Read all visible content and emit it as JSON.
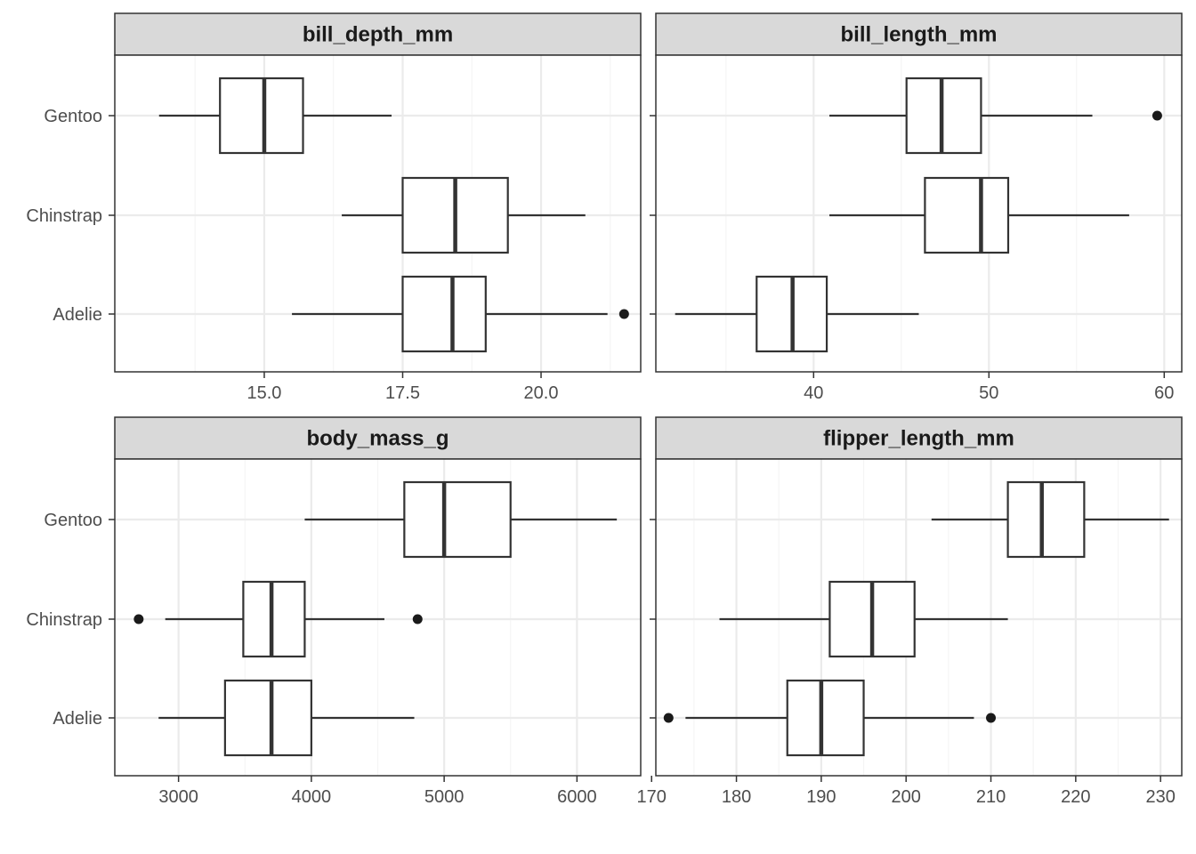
{
  "chart_data": {
    "type": "boxplot",
    "layout": "facet-grid 2x2, free x scales",
    "categories": [
      "Adelie",
      "Chinstrap",
      "Gentoo"
    ],
    "grid": true,
    "panels": [
      {
        "title": "bill_depth_mm",
        "xlim": [
          12.3,
          21.8
        ],
        "x_ticks": [
          15.0,
          17.5,
          20.0
        ],
        "x_tick_labels": [
          "15.0",
          "17.5",
          "20.0"
        ],
        "boxes": [
          {
            "category": "Adelie",
            "whisker_low": 15.5,
            "q1": 17.5,
            "median": 18.4,
            "q3": 19.0,
            "whisker_high": 21.2,
            "outliers": [
              21.5
            ]
          },
          {
            "category": "Chinstrap",
            "whisker_low": 16.4,
            "q1": 17.5,
            "median": 18.45,
            "q3": 19.4,
            "whisker_high": 20.8,
            "outliers": []
          },
          {
            "category": "Gentoo",
            "whisker_low": 13.1,
            "q1": 14.2,
            "median": 15.0,
            "q3": 15.7,
            "whisker_high": 17.3,
            "outliers": []
          }
        ]
      },
      {
        "title": "bill_length_mm",
        "xlim": [
          31.0,
          61.0
        ],
        "x_ticks": [
          40,
          50,
          60
        ],
        "x_tick_labels": [
          "40",
          "50",
          "60"
        ],
        "boxes": [
          {
            "category": "Adelie",
            "whisker_low": 32.1,
            "q1": 36.75,
            "median": 38.8,
            "q3": 40.75,
            "whisker_high": 46.0,
            "outliers": []
          },
          {
            "category": "Chinstrap",
            "whisker_low": 40.9,
            "q1": 46.35,
            "median": 49.55,
            "q3": 51.1,
            "whisker_high": 58.0,
            "outliers": []
          },
          {
            "category": "Gentoo",
            "whisker_low": 40.9,
            "q1": 45.3,
            "median": 47.3,
            "q3": 49.55,
            "whisker_high": 55.9,
            "outliers": [
              59.6
            ]
          }
        ]
      },
      {
        "title": "body_mass_g",
        "xlim": [
          2520,
          6480
        ],
        "x_ticks": [
          3000,
          4000,
          5000,
          6000
        ],
        "x_tick_labels": [
          "3000",
          "4000",
          "5000",
          "6000"
        ],
        "boxes": [
          {
            "category": "Adelie",
            "whisker_low": 2850,
            "q1": 3350,
            "median": 3700,
            "q3": 4000,
            "whisker_high": 4775,
            "outliers": []
          },
          {
            "category": "Chinstrap",
            "whisker_low": 2900,
            "q1": 3487.5,
            "median": 3700,
            "q3": 3950,
            "whisker_high": 4550,
            "outliers": [
              2700,
              4800
            ]
          },
          {
            "category": "Gentoo",
            "whisker_low": 3950,
            "q1": 4700,
            "median": 5000,
            "q3": 5500,
            "whisker_high": 6300,
            "outliers": []
          }
        ]
      },
      {
        "title": "flipper_length_mm",
        "xlim": [
          170.5,
          232.5
        ],
        "x_ticks": [
          170,
          180,
          190,
          200,
          210,
          220,
          230
        ],
        "x_tick_labels": [
          "170",
          "180",
          "190",
          "200",
          "210",
          "220",
          "230"
        ],
        "boxes": [
          {
            "category": "Adelie",
            "whisker_low": 174,
            "q1": 186,
            "median": 190,
            "q3": 195,
            "whisker_high": 208,
            "outliers": [
              172,
              210
            ]
          },
          {
            "category": "Chinstrap",
            "whisker_low": 178,
            "q1": 191,
            "median": 196,
            "q3": 201,
            "whisker_high": 212,
            "outliers": []
          },
          {
            "category": "Gentoo",
            "whisker_low": 203,
            "q1": 212,
            "median": 216,
            "q3": 221,
            "whisker_high": 231,
            "outliers": []
          }
        ]
      }
    ]
  },
  "colors": {
    "strip_fill": "#d9d9d9",
    "panel_border": "#333333",
    "grid_major": "#ebebeb",
    "grid_minor": "#f5f5f5",
    "box_line": "#333333",
    "box_fill": "#ffffff",
    "outlier": "#1a1a1a",
    "tick_text": "#4d4d4d",
    "strip_text": "#1a1a1a"
  }
}
